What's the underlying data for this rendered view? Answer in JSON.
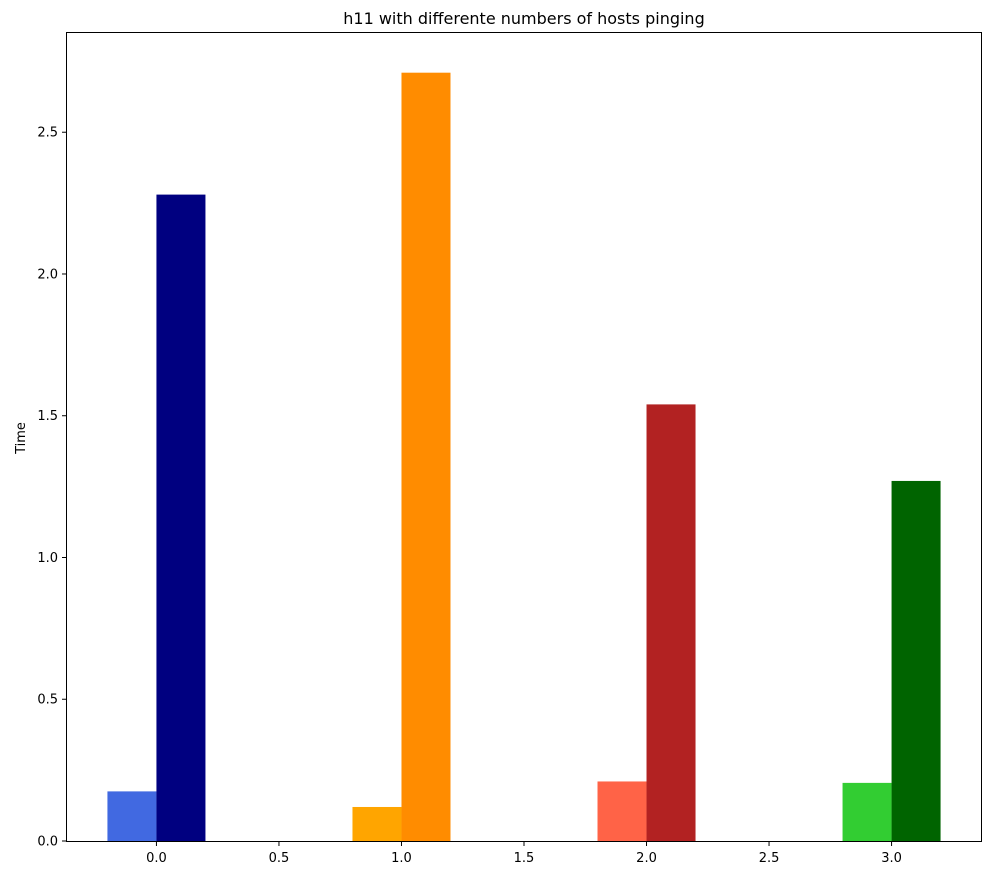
{
  "chart_data": {
    "type": "bar",
    "title": "h11 with differente numbers of hosts pinging",
    "xlabel": "",
    "ylabel": "Time",
    "xlim": [
      -0.365,
      3.365
    ],
    "ylim": [
      0.0,
      2.85
    ],
    "xticks": [
      {
        "value": 0.0,
        "label": "0.0"
      },
      {
        "value": 0.5,
        "label": "0.5"
      },
      {
        "value": 1.0,
        "label": "1.0"
      },
      {
        "value": 1.5,
        "label": "1.5"
      },
      {
        "value": 2.0,
        "label": "2.0"
      },
      {
        "value": 2.5,
        "label": "2.5"
      },
      {
        "value": 3.0,
        "label": "3.0"
      }
    ],
    "yticks": [
      {
        "value": 0.0,
        "label": "0.0"
      },
      {
        "value": 0.5,
        "label": "0.5"
      },
      {
        "value": 1.0,
        "label": "1.0"
      },
      {
        "value": 1.5,
        "label": "1.5"
      },
      {
        "value": 2.0,
        "label": "2.0"
      },
      {
        "value": 2.5,
        "label": "2.5"
      }
    ],
    "grid": false,
    "legend": false,
    "bar_width": 0.2,
    "bars": [
      {
        "x0": -0.2,
        "value": 0.175,
        "color": "#4169e1"
      },
      {
        "x0": 0.0,
        "value": 2.28,
        "color": "#000080"
      },
      {
        "x0": 0.8,
        "value": 0.12,
        "color": "#ffa500"
      },
      {
        "x0": 1.0,
        "value": 2.71,
        "color": "#ff8c00"
      },
      {
        "x0": 1.8,
        "value": 0.21,
        "color": "#ff6347"
      },
      {
        "x0": 2.0,
        "value": 1.54,
        "color": "#b22222"
      },
      {
        "x0": 2.8,
        "value": 0.205,
        "color": "#32cd32"
      },
      {
        "x0": 3.0,
        "value": 1.27,
        "color": "#006400"
      }
    ]
  }
}
